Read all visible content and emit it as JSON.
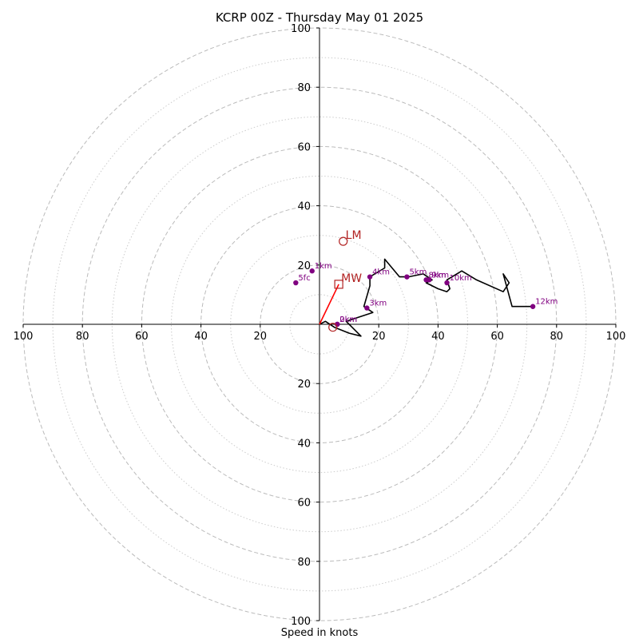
{
  "title": "KCRP 00Z - Thursday May 01 2025",
  "xlabel": "Speed in knots",
  "colors": {
    "hodograph": "#000000",
    "height_marker": "#800080",
    "storm_motion": "#b22222",
    "shear_vector": "#ff0000",
    "ring_major": "#bbbbbb",
    "ring_minor": "#cccccc"
  },
  "chart_data": {
    "type": "scatter",
    "xlim": [
      -100,
      100
    ],
    "ylim": [
      -100,
      100
    ],
    "x_tick_labels": [
      "100",
      "80",
      "60",
      "40",
      "20",
      "20",
      "40",
      "60",
      "80",
      "100"
    ],
    "y_tick_labels": [
      "100",
      "80",
      "60",
      "40",
      "20",
      "20",
      "40",
      "60",
      "80",
      "100"
    ],
    "ring_major_speeds": [
      20,
      40,
      60,
      80,
      100
    ],
    "ring_minor_speeds": [
      10,
      30,
      50,
      70,
      90
    ],
    "grid": true,
    "hodograph": {
      "u": [
        0,
        2,
        5,
        10,
        14,
        9,
        18,
        15,
        17,
        17,
        22,
        22,
        27,
        30,
        35,
        38,
        36,
        40,
        43,
        44,
        43,
        48,
        53,
        62,
        64,
        62,
        65,
        72
      ],
      "v": [
        0,
        1,
        -1,
        -3,
        -4,
        1,
        4,
        6,
        13,
        16,
        19,
        22,
        16,
        16,
        17,
        15,
        14,
        12,
        11,
        12,
        15,
        18,
        15,
        11,
        14,
        17,
        6,
        6
      ]
    },
    "height_markers": [
      {
        "label": "0km",
        "u": 6,
        "v": 0
      },
      {
        "label": "1km",
        "u": -2.5,
        "v": 18
      },
      {
        "label": "2km",
        "u": 6,
        "v": 0
      },
      {
        "label": "3km",
        "u": 16,
        "v": 5.5
      },
      {
        "label": "4km",
        "u": 17,
        "v": 16
      },
      {
        "label": "5km",
        "u": 29.5,
        "v": 16
      },
      {
        "label": "5fc",
        "u": -8,
        "v": 14
      },
      {
        "label": "8km",
        "u": 36,
        "v": 15
      },
      {
        "label": "9km",
        "u": 37,
        "v": 15
      },
      {
        "label": "10km",
        "u": 43,
        "v": 14
      },
      {
        "label": "12km",
        "u": 72,
        "v": 6
      }
    ],
    "storm_motion": [
      {
        "label": "LM",
        "u": 8,
        "v": 28,
        "marker": "circle"
      },
      {
        "label": "MW",
        "u": 6.5,
        "v": 13.5,
        "marker": "square"
      },
      {
        "label": "",
        "u": 4.5,
        "v": -1,
        "marker": "circle"
      }
    ],
    "shear_vector": {
      "u": [
        0,
        6.5
      ],
      "v": [
        0,
        13.5
      ]
    }
  }
}
